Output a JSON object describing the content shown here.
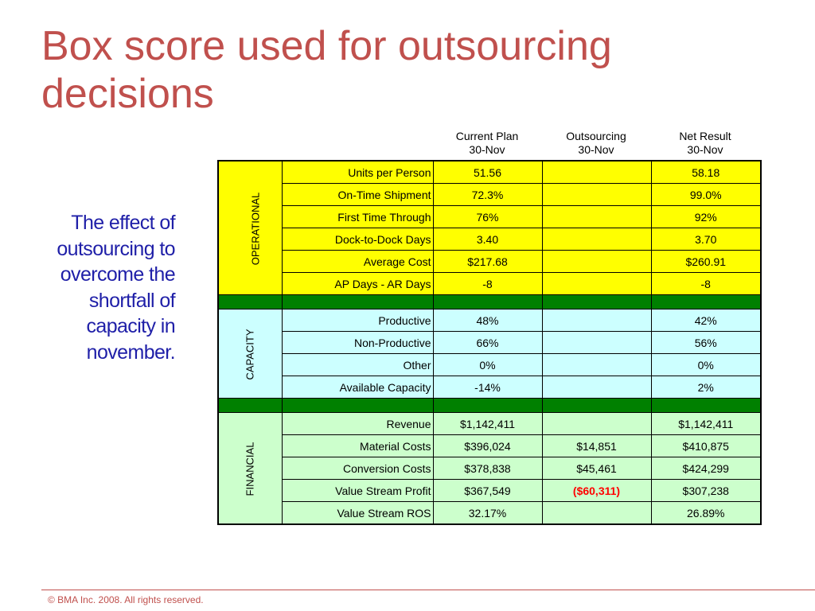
{
  "title": "Box score used for outsourcing decisions",
  "side_text": "The effect of outsourcing to overcome the shortfall of capacity in november.",
  "columns": [
    {
      "name": "Current Plan",
      "date": "30-Nov"
    },
    {
      "name": "Outsourcing",
      "date": "30-Nov"
    },
    {
      "name": "Net Result",
      "date": "30-Nov"
    }
  ],
  "sections": {
    "operational": {
      "label": "OPERATIONAL",
      "rows": [
        {
          "label": "Units per Person",
          "current": "51.56",
          "outsourcing": "",
          "net": "58.18"
        },
        {
          "label": "On-Time Shipment",
          "current": "72.3%",
          "outsourcing": "",
          "net": "99.0%"
        },
        {
          "label": "First Time Through",
          "current": "76%",
          "outsourcing": "",
          "net": "92%"
        },
        {
          "label": "Dock-to-Dock Days",
          "current": "3.40",
          "outsourcing": "",
          "net": "3.70"
        },
        {
          "label": "Average Cost",
          "current": "$217.68",
          "outsourcing": "",
          "net": "$260.91"
        },
        {
          "label": "AP Days - AR Days",
          "current": "-8",
          "outsourcing": "",
          "net": "-8"
        }
      ]
    },
    "capacity": {
      "label": "CAPACITY",
      "rows": [
        {
          "label": "Productive",
          "current": "48%",
          "outsourcing": "",
          "net": "42%"
        },
        {
          "label": "Non-Productive",
          "current": "66%",
          "outsourcing": "",
          "net": "56%"
        },
        {
          "label": "Other",
          "current": "0%",
          "outsourcing": "",
          "net": "0%"
        },
        {
          "label": "Available Capacity",
          "current": "-14%",
          "outsourcing": "",
          "net": "2%"
        }
      ]
    },
    "financial": {
      "label": "FINANCIAL",
      "rows": [
        {
          "label": "Revenue",
          "current": "$1,142,411",
          "outsourcing": "",
          "net": "$1,142,411"
        },
        {
          "label": "Material Costs",
          "current": "$396,024",
          "outsourcing": "$14,851",
          "net": "$410,875"
        },
        {
          "label": "Conversion Costs",
          "current": "$378,838",
          "outsourcing": "$45,461",
          "net": "$424,299"
        },
        {
          "label": "Value Stream Profit",
          "current": "$367,549",
          "outsourcing": "($60,311)",
          "net": "$307,238"
        },
        {
          "label": "Value Stream ROS",
          "current": "32.17%",
          "outsourcing": "",
          "net": "26.89%"
        }
      ]
    }
  },
  "colors": {
    "title": "#c0504d",
    "side_text": "#1f1fa8",
    "operational_bg": "#ffff00",
    "capacity_bg": "#ccffff",
    "financial_bg": "#ccffcc",
    "spacer_bg": "#008000",
    "negative": "#ff0000"
  },
  "footer": "© BMA Inc.  2008.  All rights reserved."
}
